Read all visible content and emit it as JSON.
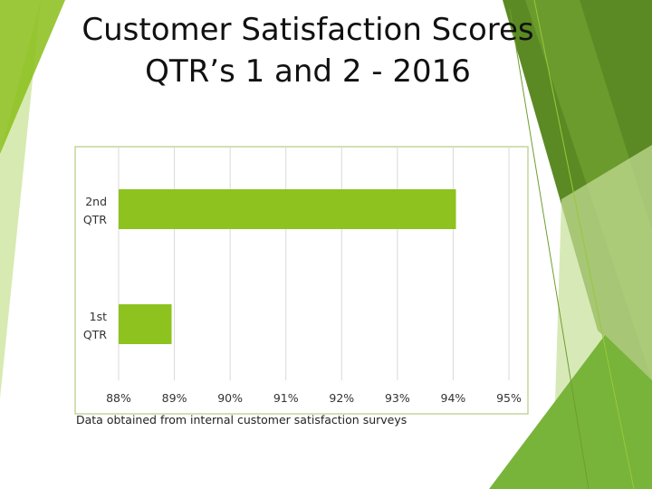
{
  "slide": {
    "title_line1": "Customer Satisfaction Scores",
    "title_line2": "QTR’s 1 and 2 - 2016",
    "caption": "Data obtained from internal customer satisfaction surveys"
  },
  "colors": {
    "bar": "#8dc21f",
    "frame": "#c2d69b",
    "gridline": "#d9d9d9",
    "accent_light": "#9ac83a",
    "accent_mid": "#6f9d2f",
    "accent_dark": "#5b8a24"
  },
  "chart_data": {
    "type": "bar",
    "orientation": "horizontal",
    "categories": [
      "2nd QTR",
      "1st QTR"
    ],
    "category_lines": [
      [
        "2nd",
        "QTR"
      ],
      [
        "1st",
        "QTR"
      ]
    ],
    "values": [
      0.9405,
      0.8895
    ],
    "xlim": [
      0.88,
      0.95
    ],
    "ticks": [
      0.88,
      0.89,
      0.9,
      0.91,
      0.92,
      0.93,
      0.94,
      0.95
    ],
    "tick_labels": [
      "88%",
      "89%",
      "90%",
      "91%",
      "92%",
      "93%",
      "94%",
      "95%"
    ],
    "grid": true,
    "legend": "none",
    "title": "",
    "xlabel": "",
    "ylabel": ""
  }
}
